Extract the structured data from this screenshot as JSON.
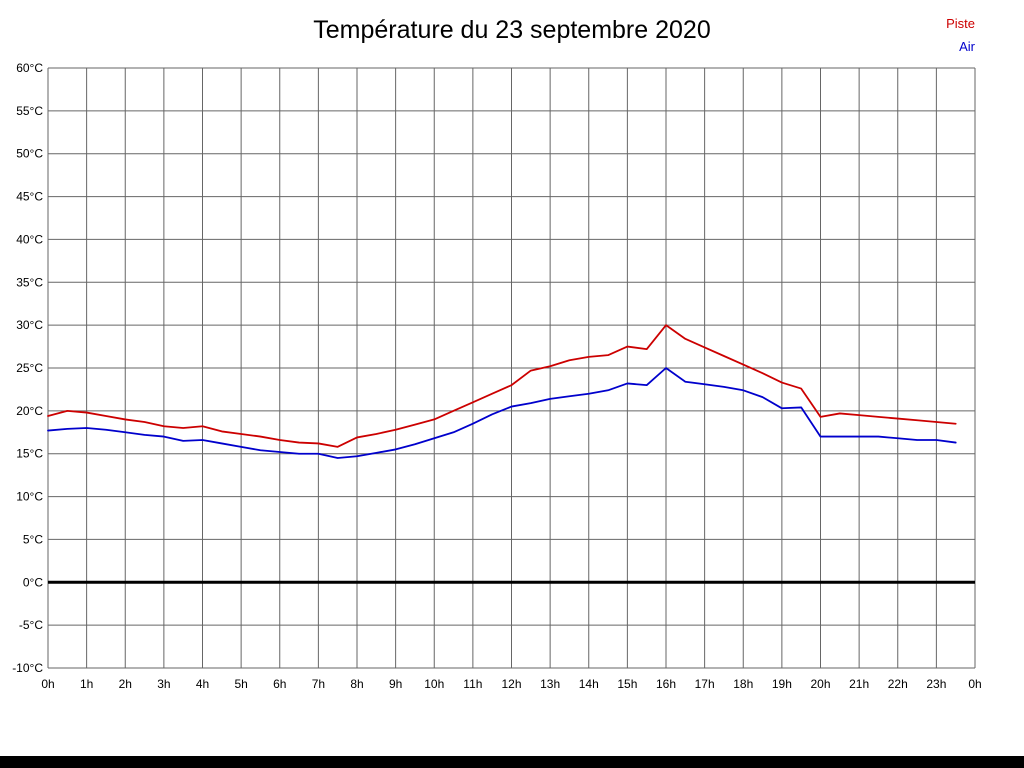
{
  "header": {
    "title": "Température du 23 septembre 2020"
  },
  "legend": {
    "items": [
      {
        "label": "Piste",
        "color": "#cc0000"
      },
      {
        "label": "Air",
        "color": "#0000cc"
      }
    ]
  },
  "chart_data": {
    "type": "line",
    "title": "Température du 23 septembre 2020",
    "xlabel": "",
    "ylabel": "",
    "xlim": [
      0,
      24
    ],
    "ylim": [
      -10,
      60
    ],
    "grid": true,
    "grid_color": "#666666",
    "axis_text_color": "#000000",
    "zero_line": {
      "value": 0,
      "color": "#000000",
      "width": 3
    },
    "legend_position": "top-right",
    "y_tick_values": [
      60,
      55,
      50,
      45,
      40,
      35,
      30,
      25,
      20,
      15,
      10,
      5,
      0,
      -5,
      -10
    ],
    "y_tick_labels": [
      "60°C",
      "55°C",
      "50°C",
      "45°C",
      "40°C",
      "35°C",
      "30°C",
      "25°C",
      "20°C",
      "15°C",
      "10°C",
      "5°C",
      "0°C",
      "-5°C",
      "-10°C"
    ],
    "x_tick_values": [
      0,
      1,
      2,
      3,
      4,
      5,
      6,
      7,
      8,
      9,
      10,
      11,
      12,
      13,
      14,
      15,
      16,
      17,
      18,
      19,
      20,
      21,
      22,
      23,
      24
    ],
    "x_tick_labels": [
      "0h",
      "1h",
      "2h",
      "3h",
      "4h",
      "5h",
      "6h",
      "7h",
      "8h",
      "9h",
      "10h",
      "11h",
      "12h",
      "13h",
      "14h",
      "15h",
      "16h",
      "17h",
      "18h",
      "19h",
      "20h",
      "21h",
      "22h",
      "23h",
      "0h"
    ],
    "x": [
      0,
      0.5,
      1,
      1.5,
      2,
      2.5,
      3,
      3.5,
      4,
      4.5,
      5,
      5.5,
      6,
      6.5,
      7,
      7.5,
      8,
      8.5,
      9,
      9.5,
      10,
      10.5,
      11,
      11.5,
      12,
      12.5,
      13,
      13.5,
      14,
      14.5,
      15,
      15.5,
      16,
      16.5,
      17,
      17.5,
      18,
      18.5,
      19,
      19.5,
      20,
      20.5,
      21,
      21.5,
      22,
      22.5,
      23,
      23.5
    ],
    "series": [
      {
        "name": "Piste",
        "color": "#cc0000",
        "values": [
          19.4,
          20.0,
          19.8,
          19.4,
          19.0,
          18.7,
          18.2,
          18.0,
          18.2,
          17.6,
          17.3,
          17.0,
          16.6,
          16.3,
          16.2,
          15.8,
          16.9,
          17.3,
          17.8,
          18.4,
          19.0,
          20.0,
          21.0,
          22.0,
          23.0,
          24.7,
          25.2,
          25.9,
          26.3,
          26.5,
          27.5,
          27.2,
          30.0,
          28.4,
          27.4,
          26.4,
          25.4,
          24.4,
          23.3,
          22.6,
          19.3,
          19.7,
          19.5,
          19.3,
          19.1,
          18.9,
          18.7,
          18.5
        ]
      },
      {
        "name": "Air",
        "color": "#0000cc",
        "values": [
          17.7,
          17.9,
          18.0,
          17.8,
          17.5,
          17.2,
          17.0,
          16.5,
          16.6,
          16.2,
          15.8,
          15.4,
          15.2,
          15.0,
          15.0,
          14.5,
          14.7,
          15.1,
          15.5,
          16.1,
          16.8,
          17.5,
          18.5,
          19.6,
          20.5,
          20.9,
          21.4,
          21.7,
          22.0,
          22.4,
          23.2,
          23.0,
          25.0,
          23.4,
          23.1,
          22.8,
          22.4,
          21.6,
          20.3,
          20.4,
          17.0,
          17.0,
          17.0,
          17.0,
          16.8,
          16.6,
          16.6,
          16.3
        ]
      }
    ]
  }
}
